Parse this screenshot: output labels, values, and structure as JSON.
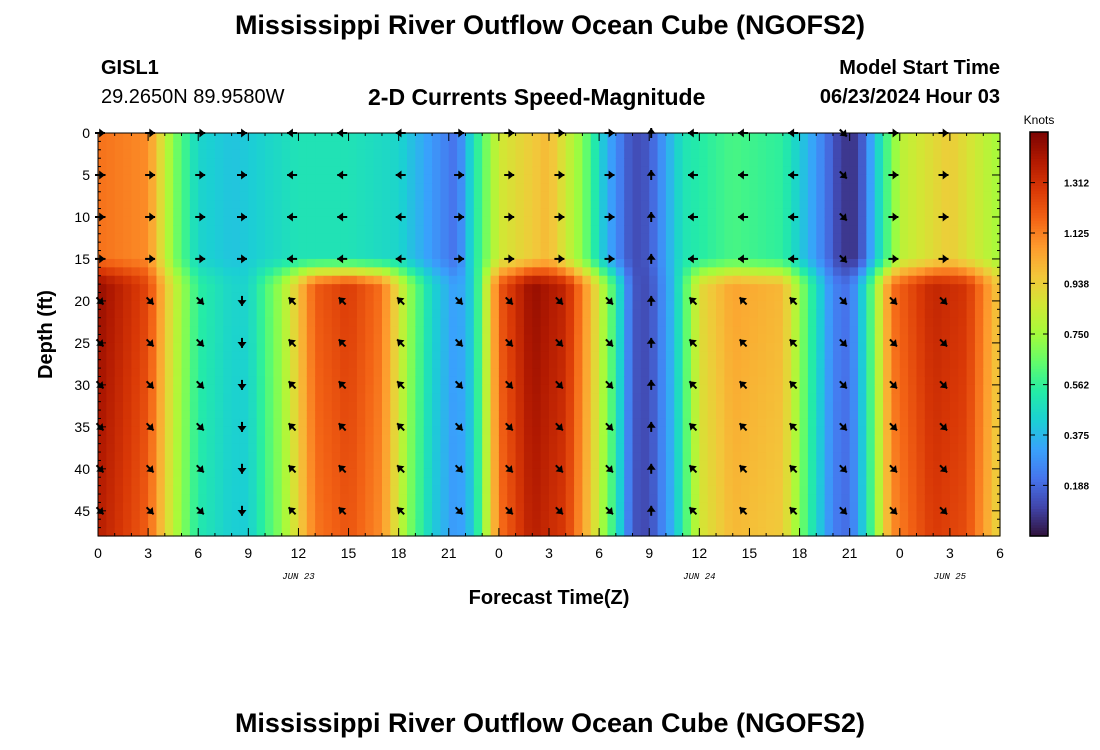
{
  "header": {
    "title": "Mississippi River Outflow Ocean Cube (NGOFS2)",
    "station_id": "GISL1",
    "coordinates": "29.2650N  89.9580W",
    "subtitle": "2-D Currents Speed-Magnitude",
    "model_start_label": "Model Start Time",
    "model_start_value": "06/23/2024 Hour 03"
  },
  "footer": {
    "title": "Mississippi River Outflow Ocean Cube (NGOFS2)"
  },
  "chart_data": {
    "type": "heatmap",
    "title": "2-D Currents Speed-Magnitude",
    "xlabel": "Forecast Time(Z)",
    "ylabel": "Depth (ft)",
    "x_range_hours": [
      0,
      54
    ],
    "x_tick_hours": [
      0,
      3,
      6,
      9,
      12,
      15,
      18,
      21,
      24,
      27,
      30,
      33,
      36,
      39,
      42,
      45,
      48,
      51,
      54
    ],
    "x_tick_labels": [
      "0",
      "3",
      "6",
      "9",
      "12",
      "15",
      "18",
      "21",
      "0",
      "3",
      "6",
      "9",
      "12",
      "15",
      "18",
      "21",
      "0",
      "3",
      "6"
    ],
    "date_labels": [
      {
        "hour": 12,
        "label": "JUN 23"
      },
      {
        "hour": 36,
        "label": "JUN 24"
      },
      {
        "hour": 51,
        "label": "JUN 25"
      }
    ],
    "y_range": [
      0,
      48
    ],
    "y_reversed": true,
    "y_ticks": [
      0,
      5,
      10,
      15,
      20,
      25,
      30,
      35,
      40,
      45
    ],
    "colorbar": {
      "label": "Knots",
      "range": [
        0,
        1.5
      ],
      "ticks": [
        "1.312",
        "1.125",
        "0.938",
        "0.750",
        "0.562",
        "0.375",
        "0.188"
      ],
      "colormap": [
        "#30123b",
        "#4145ab",
        "#4675ed",
        "#39a2fc",
        "#1bcfd4",
        "#24eca6",
        "#61fc6c",
        "#a4fc3b",
        "#d1e834",
        "#f3c63a",
        "#fe9b2d",
        "#f36315",
        "#d93806",
        "#b11901",
        "#7a0402"
      ]
    },
    "surface_layer": {
      "depth_range": [
        0,
        15
      ],
      "speed_knots_by_hour": [
        [
          0,
          1.15
        ],
        [
          3,
          1.1
        ],
        [
          4.5,
          0.7
        ],
        [
          6,
          0.45
        ],
        [
          8,
          0.4
        ],
        [
          9,
          0.42
        ],
        [
          12,
          0.5
        ],
        [
          15,
          0.5
        ],
        [
          18,
          0.45
        ],
        [
          20,
          0.3
        ],
        [
          21.5,
          0.2
        ],
        [
          22.5,
          0.5
        ],
        [
          24,
          0.85
        ],
        [
          27,
          1.0
        ],
        [
          29,
          0.7
        ],
        [
          30.5,
          0.35
        ],
        [
          32,
          0.12
        ],
        [
          33,
          0.15
        ],
        [
          35,
          0.5
        ],
        [
          38,
          0.6
        ],
        [
          41,
          0.55
        ],
        [
          43,
          0.3
        ],
        [
          44.5,
          0.08
        ],
        [
          45.5,
          0.08
        ],
        [
          46.5,
          0.4
        ],
        [
          48,
          0.8
        ],
        [
          51,
          0.95
        ],
        [
          54,
          0.75
        ]
      ]
    },
    "deep_layer": {
      "depth_range": [
        18,
        48
      ],
      "speed_knots_by_hour": [
        [
          0,
          1.45
        ],
        [
          3,
          1.25
        ],
        [
          4.5,
          0.85
        ],
        [
          6,
          0.55
        ],
        [
          8,
          0.45
        ],
        [
          9,
          0.45
        ],
        [
          11,
          0.75
        ],
        [
          13,
          1.2
        ],
        [
          15,
          1.28
        ],
        [
          17,
          1.15
        ],
        [
          18.5,
          0.75
        ],
        [
          20,
          0.45
        ],
        [
          21.5,
          0.3
        ],
        [
          22.5,
          0.45
        ],
        [
          24,
          1.2
        ],
        [
          26,
          1.45
        ],
        [
          28,
          1.35
        ],
        [
          29.5,
          1.0
        ],
        [
          31,
          0.55
        ],
        [
          32,
          0.15
        ],
        [
          33,
          0.12
        ],
        [
          34.5,
          0.4
        ],
        [
          36,
          0.9
        ],
        [
          38,
          1.05
        ],
        [
          41,
          1.0
        ],
        [
          42.5,
          0.6
        ],
        [
          44,
          0.25
        ],
        [
          45,
          0.2
        ],
        [
          46,
          0.5
        ],
        [
          47.5,
          1.15
        ],
        [
          50,
          1.35
        ],
        [
          52,
          1.3
        ],
        [
          54,
          0.95
        ]
      ]
    },
    "vector_rows_depth_ft": [
      0,
      5,
      10,
      15,
      20,
      25,
      30,
      35,
      40,
      45
    ],
    "vector_columns": [
      {
        "hour": 0,
        "dir": "E",
        "deep_dir": "SE"
      },
      {
        "hour": 3,
        "dir": "E",
        "deep_dir": "SE"
      },
      {
        "hour": 6,
        "dir": "E",
        "deep_dir": "SE"
      },
      {
        "hour": 8.5,
        "dir": "E",
        "deep_dir": "S"
      },
      {
        "hour": 11.5,
        "dir": "W",
        "deep_dir": "NW"
      },
      {
        "hour": 14.5,
        "dir": "W",
        "deep_dir": "NW"
      },
      {
        "hour": 18,
        "dir": "W",
        "deep_dir": "NW"
      },
      {
        "hour": 21.5,
        "dir": "E",
        "deep_dir": "SE"
      },
      {
        "hour": 24.5,
        "dir": "E",
        "deep_dir": "SE"
      },
      {
        "hour": 27.5,
        "dir": "E",
        "deep_dir": "SE"
      },
      {
        "hour": 30.5,
        "dir": "E",
        "deep_dir": "SE"
      },
      {
        "hour": 33,
        "dir": "N",
        "deep_dir": "N"
      },
      {
        "hour": 35.5,
        "dir": "W",
        "deep_dir": "NW"
      },
      {
        "hour": 38.5,
        "dir": "W",
        "deep_dir": "NW"
      },
      {
        "hour": 41.5,
        "dir": "W",
        "deep_dir": "NW"
      },
      {
        "hour": 44.5,
        "dir": "SE",
        "deep_dir": "SE"
      },
      {
        "hour": 47.5,
        "dir": "E",
        "deep_dir": "SE"
      },
      {
        "hour": 50.5,
        "dir": "E",
        "deep_dir": "SE"
      }
    ]
  }
}
